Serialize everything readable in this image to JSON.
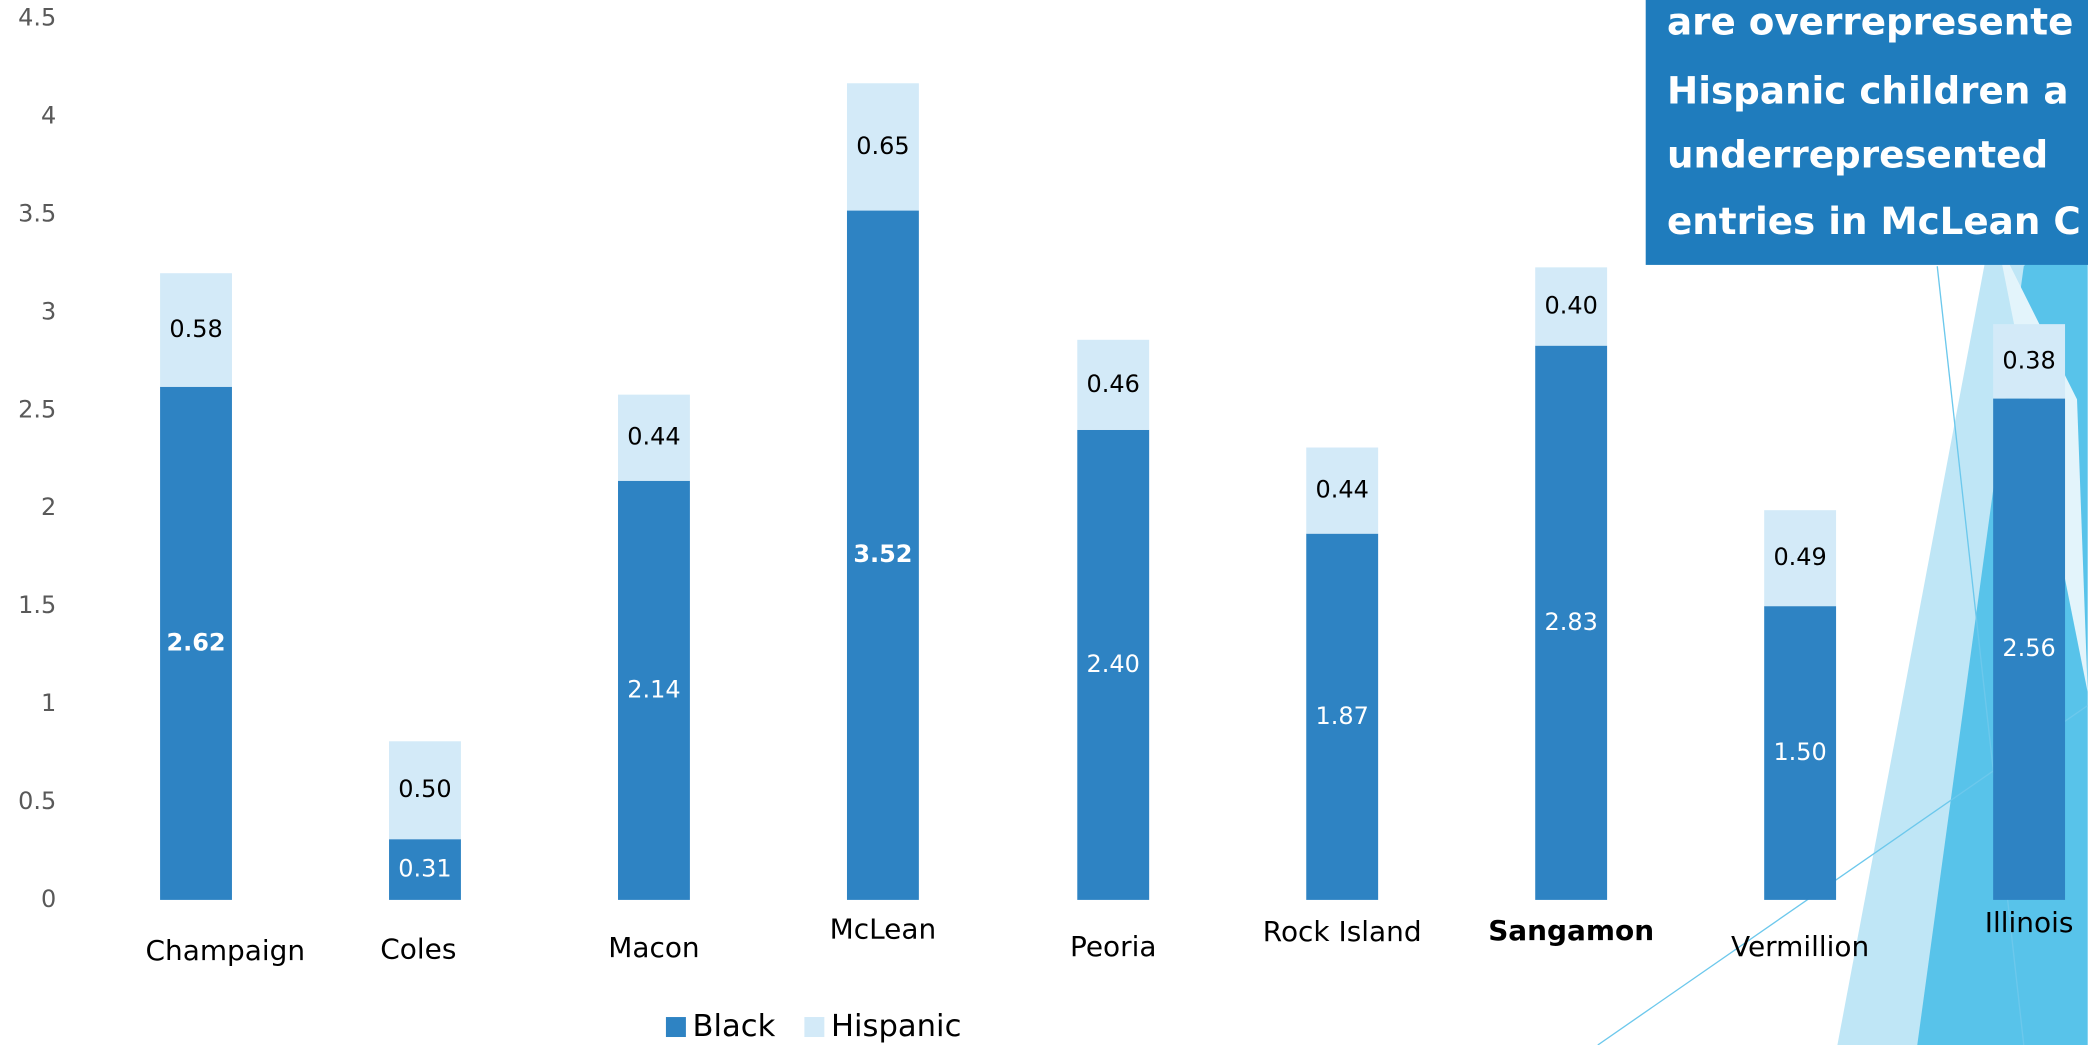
{
  "chart_data": {
    "type": "stacked-bar",
    "annotation": [
      "are overrepresente",
      "Hispanic children a",
      "underrepresented",
      "entries in McLean C"
    ],
    "categories": [
      "Champaign",
      "Coles",
      "Macon",
      "McLean",
      "Peoria",
      "Rock Island",
      "Sangamon",
      "Vermillion",
      "Illinois"
    ],
    "series": [
      {
        "name": "Black",
        "color": "#2e83c3",
        "values": [
          2.62,
          0.31,
          2.14,
          3.52,
          2.4,
          1.87,
          2.83,
          1.5,
          2.56
        ],
        "value_labels": [
          "2.62",
          "0.31",
          "2.14",
          "3.52",
          "2.40",
          "1.87",
          "2.83",
          "1.50",
          "2.56"
        ]
      },
      {
        "name": "Hispanic",
        "color": "#d3eaf8",
        "values": [
          0.58,
          0.5,
          0.44,
          0.65,
          0.46,
          0.44,
          0.4,
          0.49,
          0.38
        ],
        "value_labels": [
          "0.58",
          "0.50",
          "0.44",
          "0.65",
          "0.46",
          "0.44",
          "0.40",
          "0.49",
          "0.38"
        ]
      }
    ],
    "ylim": [
      0,
      4.5
    ],
    "yticks": [
      0,
      0.5,
      1,
      1.5,
      2,
      2.5,
      3,
      3.5,
      4,
      4.5
    ],
    "legend": "bottom"
  }
}
